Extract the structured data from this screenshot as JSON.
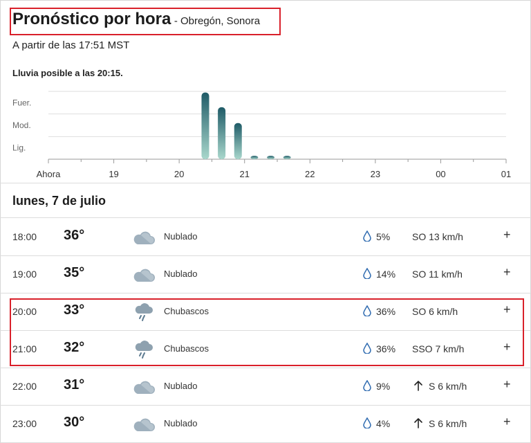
{
  "header": {
    "title": "Pronóstico por hora",
    "location": "- Obregón, Sonora",
    "subtitle": "A partir de las 17:51 MST"
  },
  "rain_note": "Lluvia posible a las 20:15.",
  "chart_data": {
    "type": "bar",
    "title": "",
    "y_levels": [
      "Fuer.",
      "Mod.",
      "Lig."
    ],
    "x_ticks": [
      "Ahora",
      "19",
      "20",
      "21",
      "22",
      "23",
      "00",
      "01"
    ],
    "x_unit": "hours from now",
    "xlim": [
      0,
      7
    ],
    "ylim": [
      0,
      3
    ],
    "bars": [
      {
        "x": 2.4,
        "intensity": 2.95
      },
      {
        "x": 2.65,
        "intensity": 2.3
      },
      {
        "x": 2.9,
        "intensity": 1.6
      },
      {
        "x": 3.15,
        "intensity": 0.15
      },
      {
        "x": 3.4,
        "intensity": 0.15
      },
      {
        "x": 3.65,
        "intensity": 0.15
      }
    ],
    "colors": {
      "bar_top": "#1f5b67",
      "bar_bottom": "#a9d7cc",
      "grid": "#dddddd"
    }
  },
  "day_heading": "lunes, 7 de julio",
  "rows": [
    {
      "time": "18:00",
      "temp": "36°",
      "icon": "cloudy-icon",
      "condition": "Nublado",
      "precip": "5%",
      "wind": "SO 13 km/h",
      "wind_arrow": false
    },
    {
      "time": "19:00",
      "temp": "35°",
      "icon": "cloudy-icon",
      "condition": "Nublado",
      "precip": "14%",
      "wind": "SO 11 km/h",
      "wind_arrow": false
    },
    {
      "time": "20:00",
      "temp": "33°",
      "icon": "showers-icon",
      "condition": "Chubascos",
      "precip": "36%",
      "wind": "SO 6 km/h",
      "wind_arrow": false
    },
    {
      "time": "21:00",
      "temp": "32°",
      "icon": "showers-icon",
      "condition": "Chubascos",
      "precip": "36%",
      "wind": "SSO 7 km/h",
      "wind_arrow": false
    },
    {
      "time": "22:00",
      "temp": "31°",
      "icon": "cloudy-icon",
      "condition": "Nublado",
      "precip": "9%",
      "wind": "S 6 km/h",
      "wind_arrow": true
    },
    {
      "time": "23:00",
      "temp": "30°",
      "icon": "cloudy-icon",
      "condition": "Nublado",
      "precip": "4%",
      "wind": "S 6 km/h",
      "wind_arrow": true
    }
  ],
  "expand_label": "+"
}
